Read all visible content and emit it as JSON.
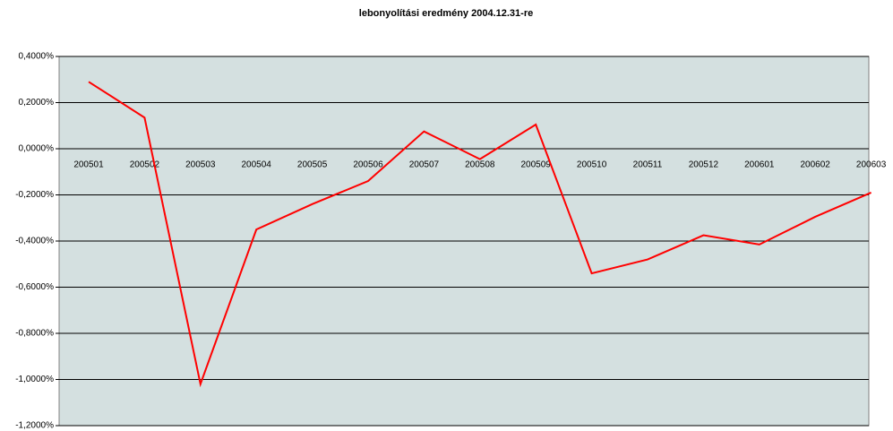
{
  "chart_data": {
    "type": "line",
    "title": "lebonyolítási eredmény 2004.12.31-re",
    "categories": [
      "200501",
      "200502",
      "200503",
      "200504",
      "200505",
      "200506",
      "200507",
      "200508",
      "200509",
      "200510",
      "200511",
      "200512",
      "200601",
      "200602",
      "200603"
    ],
    "series": [
      {
        "color": "#ff0000",
        "values": [
          0.29,
          0.135,
          -1.02,
          -0.35,
          -0.24,
          -0.14,
          0.075,
          -0.045,
          0.105,
          -0.54,
          -0.48,
          -0.375,
          -0.415,
          -0.295,
          -0.19
        ]
      }
    ],
    "ylim": [
      -1.2,
      0.4
    ],
    "yticks": [
      {
        "value": 0.4,
        "label": "0,4000%"
      },
      {
        "value": 0.2,
        "label": "0,2000%"
      },
      {
        "value": 0,
        "label": "0,0000%"
      },
      {
        "value": -0.2,
        "label": "-0,2000%"
      },
      {
        "value": -0.4,
        "label": "-0,4000%"
      },
      {
        "value": -0.6,
        "label": "-0,6000%"
      },
      {
        "value": -0.8,
        "label": "-0,8000%"
      },
      {
        "value": -1,
        "label": "-1,0000%"
      },
      {
        "value": -1.2,
        "label": "-1,2000%"
      }
    ],
    "grid": true,
    "background": "#d4e0e0"
  }
}
